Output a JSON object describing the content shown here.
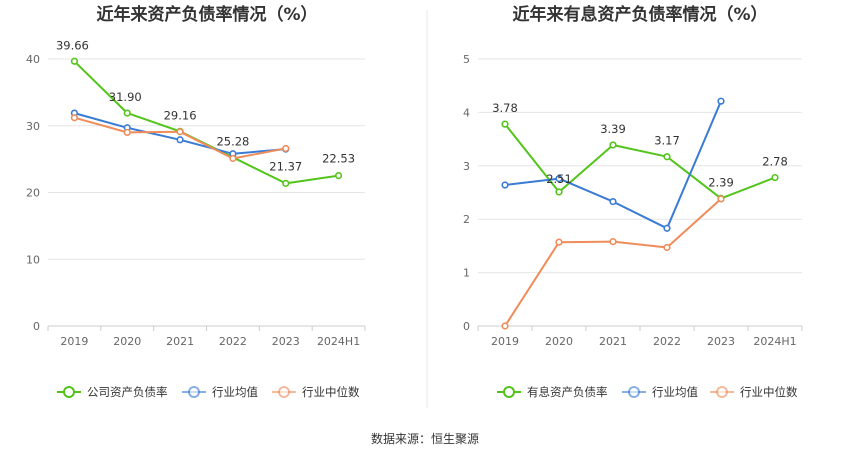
{
  "source_label": "数据来源：恒生聚源",
  "chart_data": [
    {
      "type": "line",
      "title": "近年来资产负债率情况（%）",
      "categories": [
        "2019",
        "2020",
        "2021",
        "2022",
        "2023",
        "2024H1"
      ],
      "ylim": [
        0,
        40
      ],
      "yticks": [
        0,
        10,
        20,
        30,
        40
      ],
      "grid": true,
      "legend_position": "bottom",
      "series": [
        {
          "name": "公司资产负债率",
          "color": "#52c41a",
          "values": [
            39.66,
            31.9,
            29.16,
            25.28,
            21.37,
            22.53
          ],
          "labels": [
            "39.66",
            "31.90",
            "29.16",
            "25.28",
            "21.37",
            "22.53"
          ]
        },
        {
          "name": "行业均值",
          "color": "#3a7bd5",
          "values": [
            31.9,
            29.7,
            27.9,
            25.8,
            26.5,
            null
          ]
        },
        {
          "name": "行业中位数",
          "color": "#f08c5a",
          "values": [
            31.2,
            29.0,
            29.1,
            25.1,
            26.6,
            null
          ]
        }
      ]
    },
    {
      "type": "line",
      "title": "近年来有息资产负债率情况（%）",
      "categories": [
        "2019",
        "2020",
        "2021",
        "2022",
        "2023",
        "2024H1"
      ],
      "ylim": [
        0,
        5
      ],
      "yticks": [
        0,
        1,
        2,
        3,
        4,
        5
      ],
      "grid": true,
      "legend_position": "bottom",
      "series": [
        {
          "name": "有息资产负债率",
          "color": "#52c41a",
          "values": [
            3.78,
            2.51,
            3.39,
            3.17,
            2.39,
            2.78
          ],
          "labels": [
            "3.78",
            "2.51",
            "3.39",
            "3.17",
            "2.39",
            "2.78"
          ]
        },
        {
          "name": "行业均值",
          "color": "#3a7bd5",
          "values": [
            2.64,
            2.76,
            2.33,
            1.83,
            4.21,
            null
          ]
        },
        {
          "name": "行业中位数",
          "color": "#f08c5a",
          "values": [
            0.0,
            1.57,
            1.58,
            1.47,
            2.38,
            null
          ]
        }
      ]
    }
  ]
}
